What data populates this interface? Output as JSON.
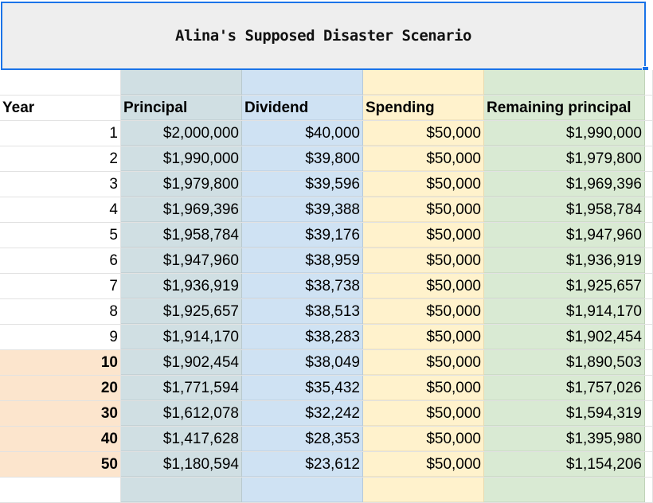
{
  "title": "Alina's Supposed Disaster Scenario",
  "colors": {
    "principal": "#d0dfe3",
    "dividend": "#cfe2f3",
    "spending": "#fff2cc",
    "remaining": "#d9ead3",
    "highlight_year": "#fce5cd",
    "title_bg": "#eeeeee",
    "selection": "#1a73e8"
  },
  "headers": [
    "Year",
    "Principal",
    "Dividend",
    "Spending",
    "Remaining principal"
  ],
  "rows": [
    {
      "year": "1",
      "principal": "$2,000,000",
      "dividend": "$40,000",
      "spending": "$50,000",
      "remaining": "$1,990,000",
      "highlight": false
    },
    {
      "year": "2",
      "principal": "$1,990,000",
      "dividend": "$39,800",
      "spending": "$50,000",
      "remaining": "$1,979,800",
      "highlight": false
    },
    {
      "year": "3",
      "principal": "$1,979,800",
      "dividend": "$39,596",
      "spending": "$50,000",
      "remaining": "$1,969,396",
      "highlight": false
    },
    {
      "year": "4",
      "principal": "$1,969,396",
      "dividend": "$39,388",
      "spending": "$50,000",
      "remaining": "$1,958,784",
      "highlight": false
    },
    {
      "year": "5",
      "principal": "$1,958,784",
      "dividend": "$39,176",
      "spending": "$50,000",
      "remaining": "$1,947,960",
      "highlight": false
    },
    {
      "year": "6",
      "principal": "$1,947,960",
      "dividend": "$38,959",
      "spending": "$50,000",
      "remaining": "$1,936,919",
      "highlight": false
    },
    {
      "year": "7",
      "principal": "$1,936,919",
      "dividend": "$38,738",
      "spending": "$50,000",
      "remaining": "$1,925,657",
      "highlight": false
    },
    {
      "year": "8",
      "principal": "$1,925,657",
      "dividend": "$38,513",
      "spending": "$50,000",
      "remaining": "$1,914,170",
      "highlight": false
    },
    {
      "year": "9",
      "principal": "$1,914,170",
      "dividend": "$38,283",
      "spending": "$50,000",
      "remaining": "$1,902,454",
      "highlight": false
    },
    {
      "year": "10",
      "principal": "$1,902,454",
      "dividend": "$38,049",
      "spending": "$50,000",
      "remaining": "$1,890,503",
      "highlight": true
    },
    {
      "year": "20",
      "principal": "$1,771,594",
      "dividend": "$35,432",
      "spending": "$50,000",
      "remaining": "$1,757,026",
      "highlight": true
    },
    {
      "year": "30",
      "principal": "$1,612,078",
      "dividend": "$32,242",
      "spending": "$50,000",
      "remaining": "$1,594,319",
      "highlight": true
    },
    {
      "year": "40",
      "principal": "$1,417,628",
      "dividend": "$28,353",
      "spending": "$50,000",
      "remaining": "$1,395,980",
      "highlight": true
    },
    {
      "year": "50",
      "principal": "$1,180,594",
      "dividend": "$23,612",
      "spending": "$50,000",
      "remaining": "$1,154,206",
      "highlight": true
    }
  ]
}
